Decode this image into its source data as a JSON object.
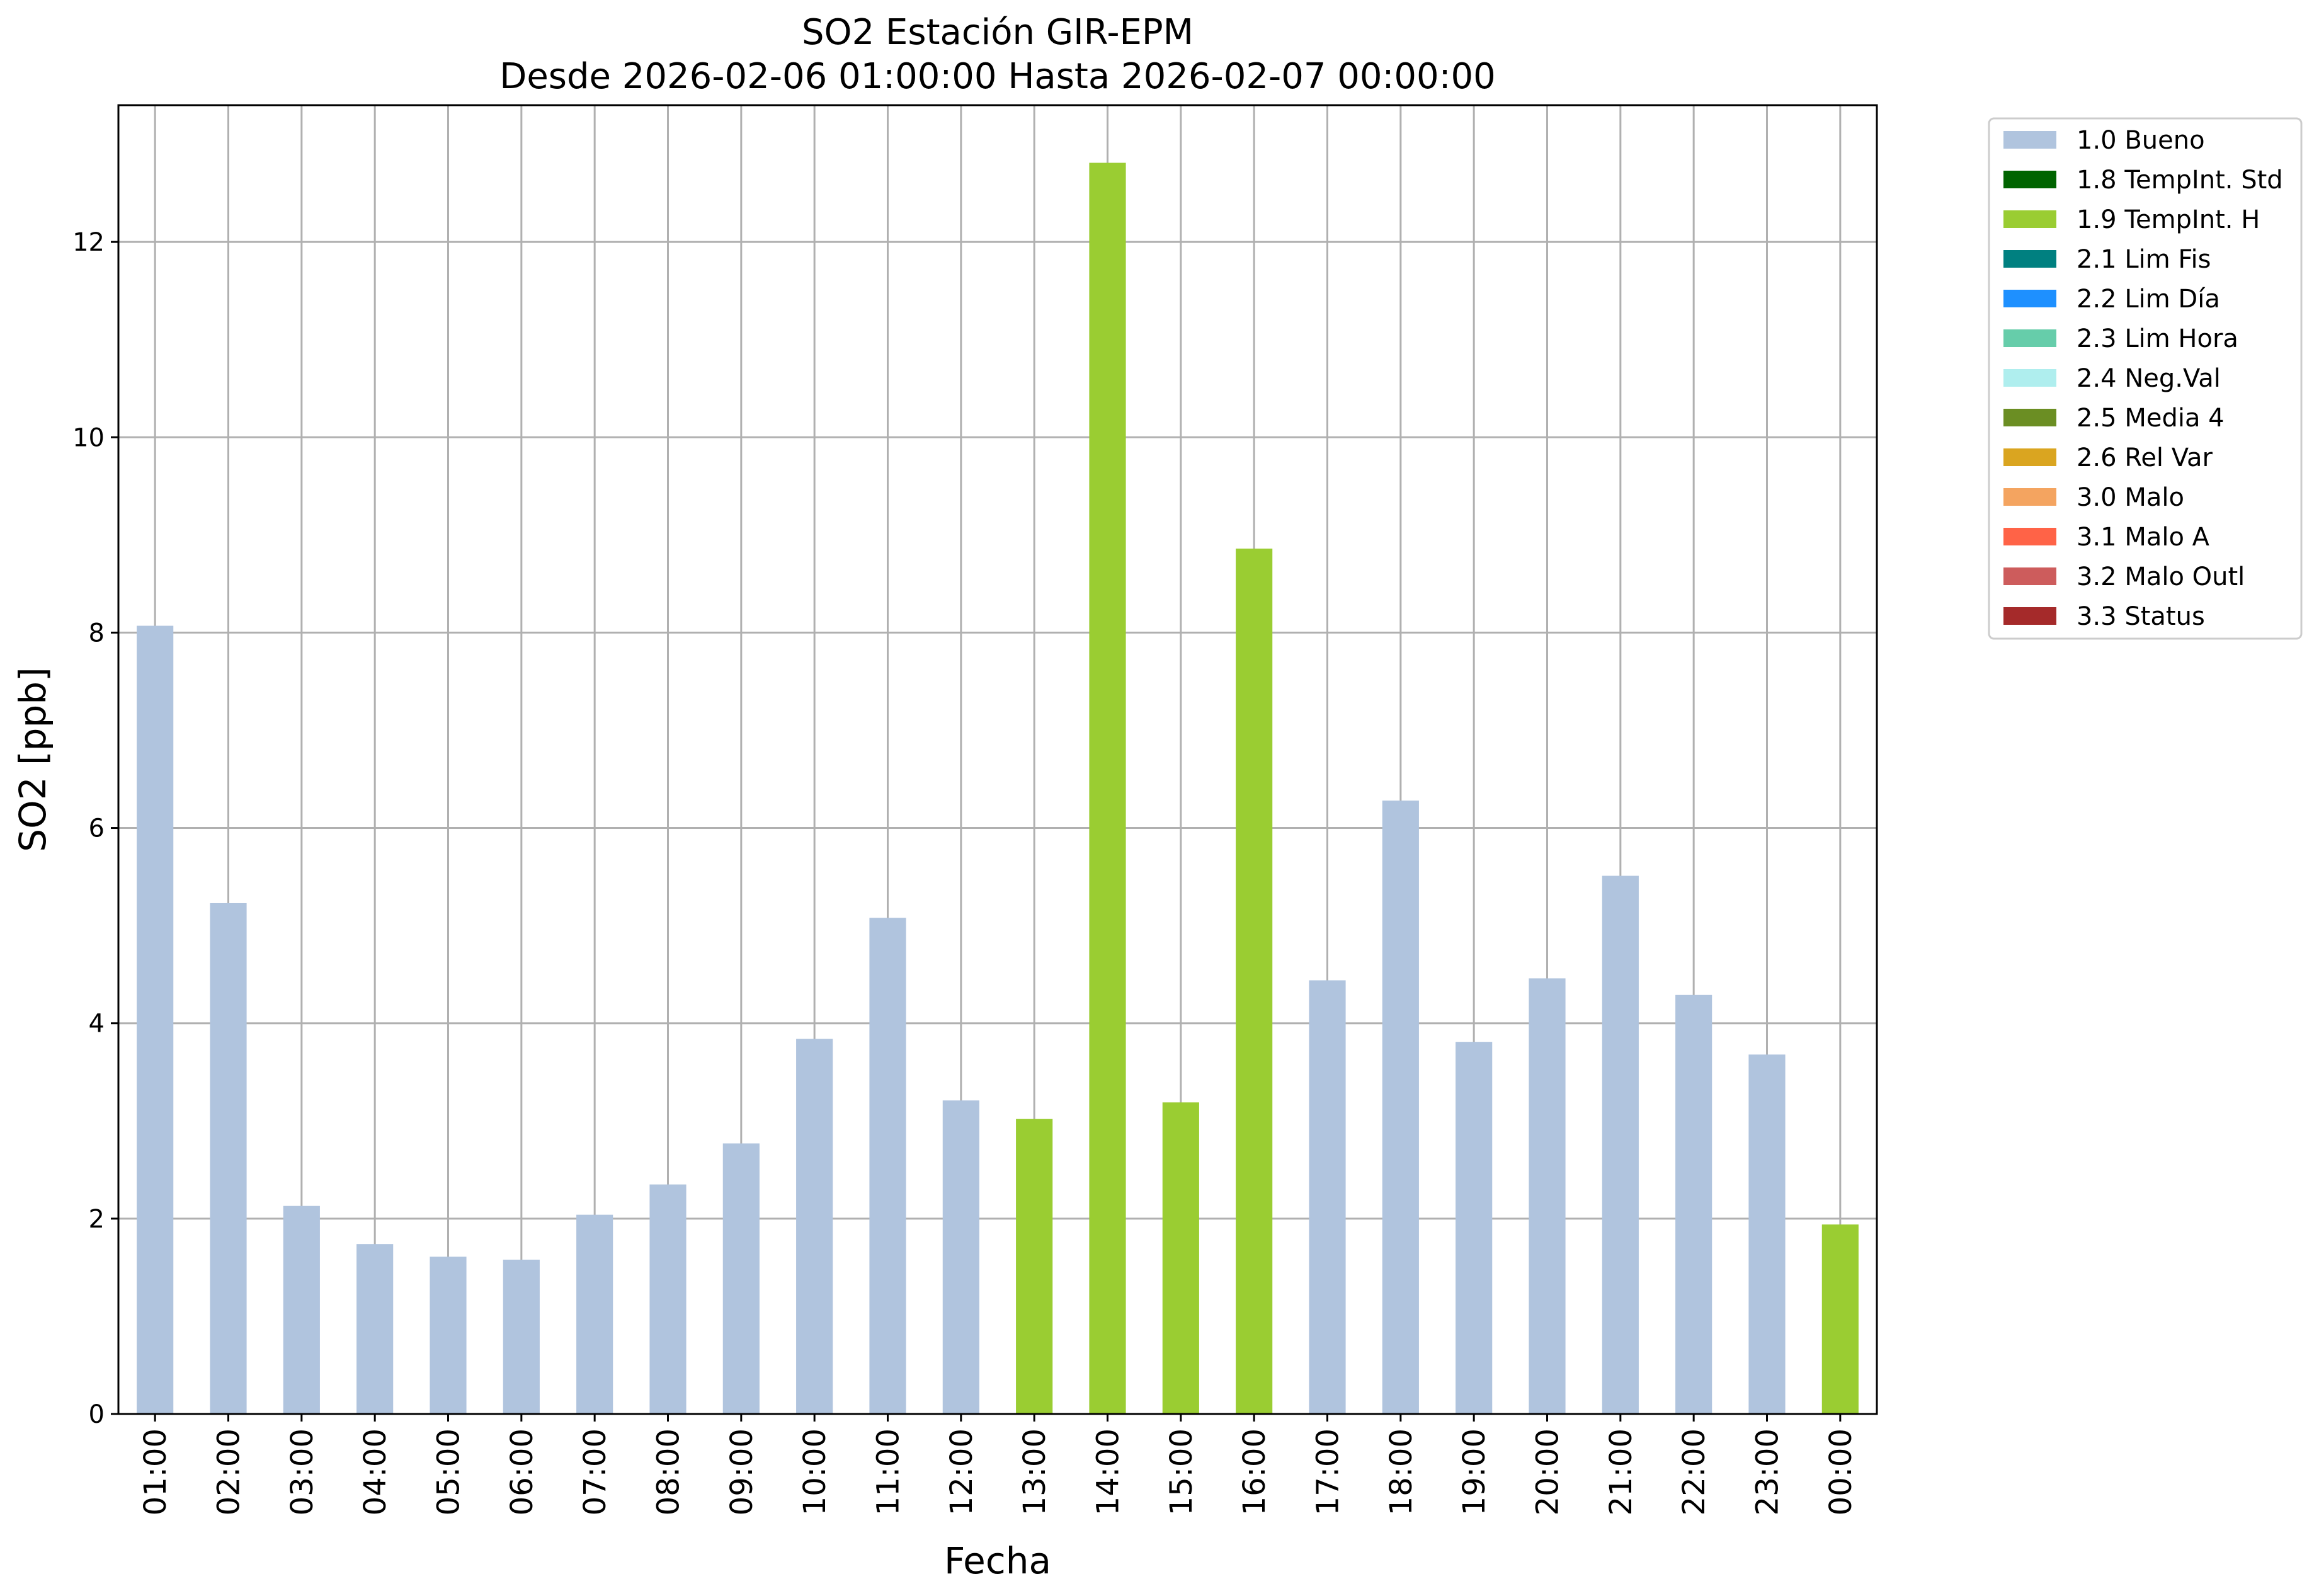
{
  "chart_data": {
    "type": "bar",
    "title": "SO2 Estación GIR-EPM",
    "subtitle": "Desde 2026-02-06 01:00:00 Hasta 2026-02-07 00:00:00",
    "xlabel": "Fecha",
    "ylabel": "SO2 [ppb]",
    "ylim": [
      0,
      13.4
    ],
    "yticks": [
      0,
      2,
      4,
      6,
      8,
      10,
      12
    ],
    "grid": true,
    "legend_position": "outside-right",
    "categories": [
      "01:00",
      "02:00",
      "03:00",
      "04:00",
      "05:00",
      "06:00",
      "07:00",
      "08:00",
      "09:00",
      "10:00",
      "11:00",
      "12:00",
      "13:00",
      "14:00",
      "15:00",
      "16:00",
      "17:00",
      "18:00",
      "19:00",
      "20:00",
      "21:00",
      "22:00",
      "23:00",
      "00:00"
    ],
    "values": [
      8.07,
      5.23,
      2.13,
      1.74,
      1.61,
      1.58,
      2.04,
      2.35,
      2.77,
      3.84,
      5.08,
      3.21,
      3.02,
      12.81,
      3.19,
      8.86,
      4.44,
      6.28,
      3.81,
      4.46,
      5.51,
      4.29,
      3.68,
      1.94
    ],
    "flags": [
      "1.0 Bueno",
      "1.0 Bueno",
      "1.0 Bueno",
      "1.0 Bueno",
      "1.0 Bueno",
      "1.0 Bueno",
      "1.0 Bueno",
      "1.0 Bueno",
      "1.0 Bueno",
      "1.0 Bueno",
      "1.0 Bueno",
      "1.0 Bueno",
      "1.9 TempInt. H",
      "1.9 TempInt. H",
      "1.9 TempInt. H",
      "1.9 TempInt. H",
      "1.0 Bueno",
      "1.0 Bueno",
      "1.0 Bueno",
      "1.0 Bueno",
      "1.0 Bueno",
      "1.0 Bueno",
      "1.0 Bueno",
      "1.9 TempInt. H"
    ],
    "legend": [
      {
        "label": "1.0 Bueno",
        "color": "#b0c4de"
      },
      {
        "label": "1.8 TempInt. Std",
        "color": "#006400"
      },
      {
        "label": "1.9 TempInt. H",
        "color": "#9acd32"
      },
      {
        "label": "2.1 Lim Fis",
        "color": "#008080"
      },
      {
        "label": "2.2 Lim Día",
        "color": "#1e90ff"
      },
      {
        "label": "2.3 Lim Hora",
        "color": "#66cdaa"
      },
      {
        "label": "2.4 Neg.Val",
        "color": "#afeeee"
      },
      {
        "label": "2.5 Media 4",
        "color": "#6b8e23"
      },
      {
        "label": "2.6 Rel Var",
        "color": "#daa520"
      },
      {
        "label": "3.0 Malo",
        "color": "#f4a460"
      },
      {
        "label": "3.1 Malo A",
        "color": "#ff6347"
      },
      {
        "label": "3.2 Malo Outl",
        "color": "#cd5c5c"
      },
      {
        "label": "3.3 Status",
        "color": "#a52a2a"
      }
    ]
  }
}
